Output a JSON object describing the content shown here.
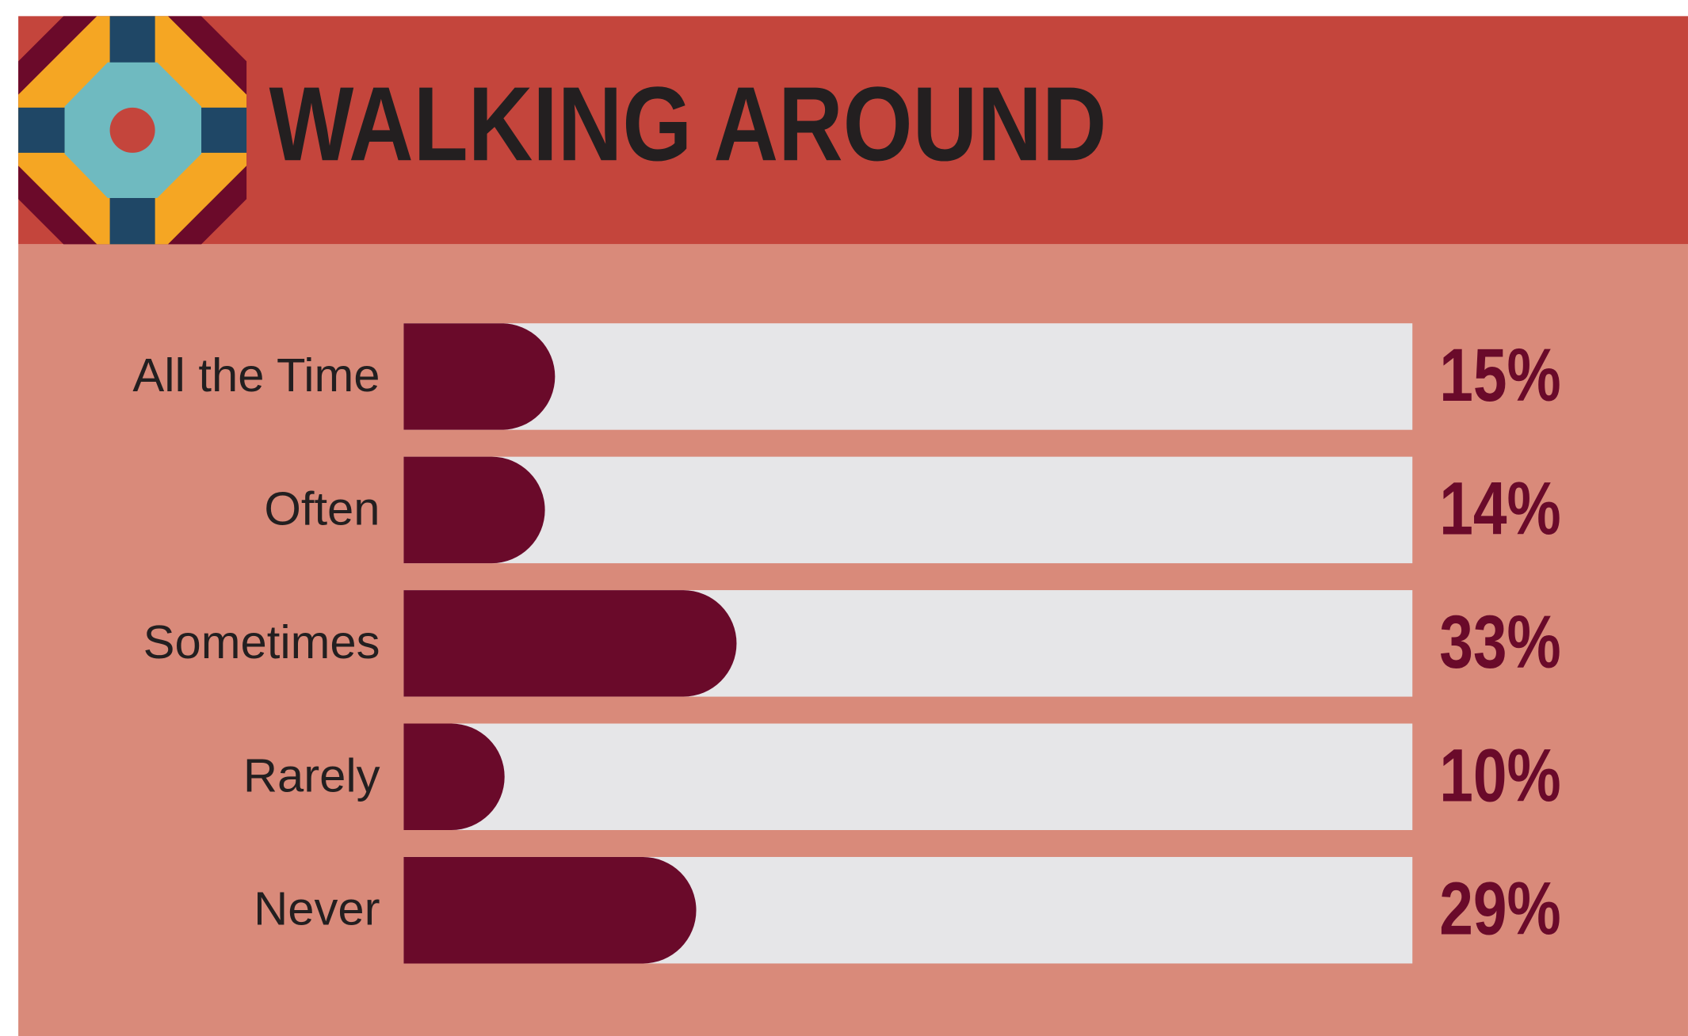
{
  "chart_data": {
    "type": "bar",
    "orientation": "horizontal",
    "title": "WALKING AROUND",
    "categories": [
      "All the Time",
      "Often",
      "Sometimes",
      "Rarely",
      "Never"
    ],
    "values": [
      15,
      14,
      33,
      10,
      29
    ],
    "value_labels": [
      "15%",
      "14%",
      "33%",
      "10%",
      "29%"
    ],
    "color": "#6a0a2a",
    "xlim": [
      0,
      100
    ]
  }
}
